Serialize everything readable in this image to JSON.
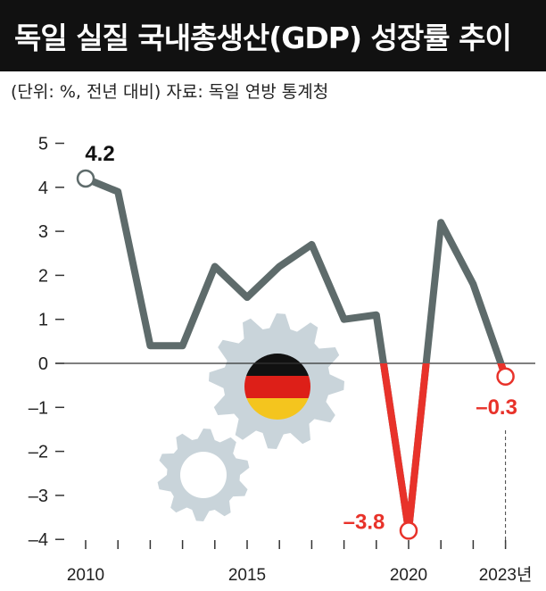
{
  "title": "독일 실질 국내총생산(GDP) 성장률 추이",
  "subtitle": "(단위: %, 전년 대비)  자료: 독일 연방 통계청",
  "colors": {
    "title_bg": "#111111",
    "line": "#5e6b6b",
    "highlight": "#e8322a",
    "zero_line": "#333333",
    "gear": "#c9d4da",
    "flag_black": "#111111",
    "flag_red": "#dd1f18",
    "flag_gold": "#f4c51e"
  },
  "icons": [
    "gear-icon",
    "german-flag-icon"
  ],
  "chart_data": {
    "type": "line",
    "title": "독일 실질 국내총생산(GDP) 성장률 추이",
    "xlabel": "",
    "ylabel": "",
    "x": [
      2010,
      2011,
      2012,
      2013,
      2014,
      2015,
      2016,
      2017,
      2018,
      2019,
      2020,
      2021,
      2022,
      2023
    ],
    "series": [
      {
        "values": [
          4.2,
          3.9,
          0.4,
          0.4,
          2.2,
          1.5,
          2.2,
          2.7,
          1.0,
          1.1,
          -3.8,
          3.2,
          1.8,
          -0.3
        ]
      }
    ],
    "ylim": [
      -4,
      5
    ],
    "yticks": [
      5,
      4,
      3,
      2,
      1,
      0,
      -1,
      -2,
      -3,
      -4
    ],
    "ytick_labels": [
      "5",
      "4",
      "3",
      "2",
      "1",
      "0",
      "–1",
      "–2",
      "–3",
      "–4"
    ],
    "xtick_labels": [
      {
        "x": 2010,
        "label": "2010"
      },
      {
        "x": 2015,
        "label": "2015"
      },
      {
        "x": 2020,
        "label": "2020"
      },
      {
        "x": 2023,
        "label": "2023년"
      }
    ],
    "annotations": [
      {
        "x": 2010,
        "y": 4.2,
        "label": "4.2",
        "color": "#111111"
      },
      {
        "x": 2020,
        "y": -3.8,
        "label": "–3.8",
        "color": "#e8322a"
      },
      {
        "x": 2023,
        "y": -0.3,
        "label": "–0.3",
        "color": "#e8322a"
      }
    ],
    "grid": false,
    "legend": "none"
  }
}
